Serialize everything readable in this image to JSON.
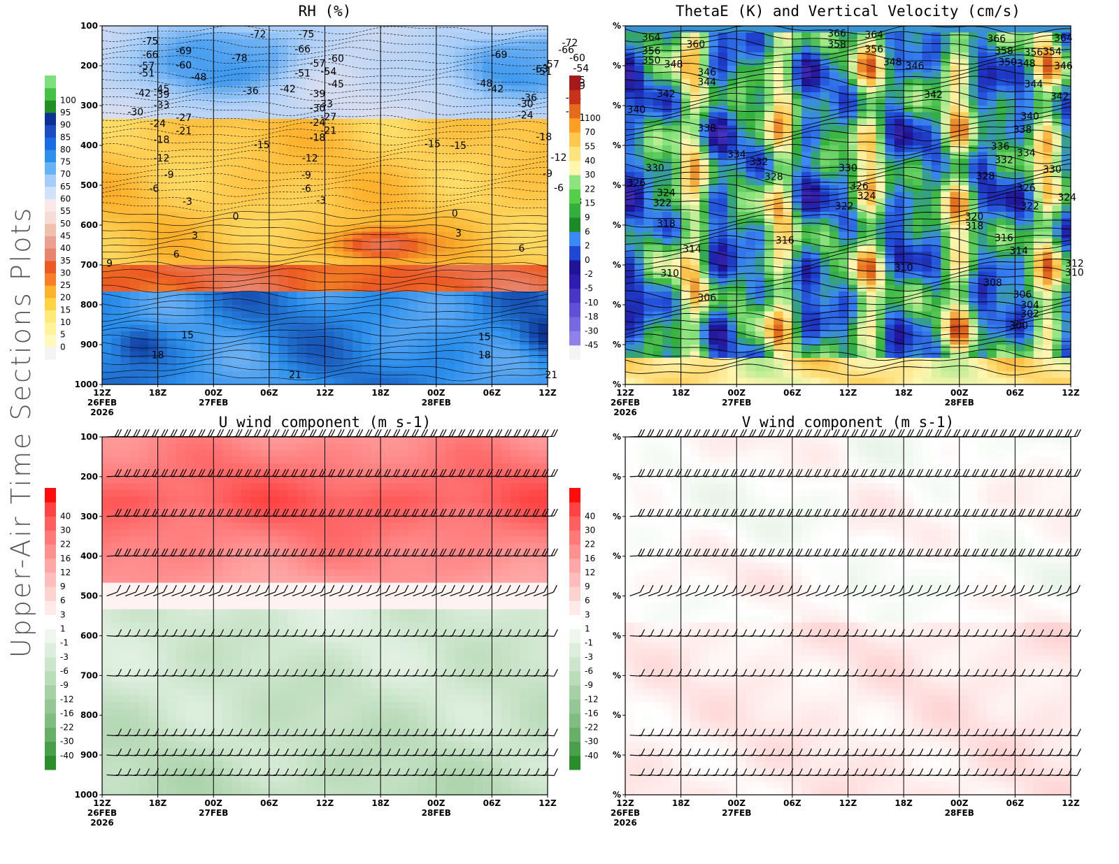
{
  "page_title": "Upper-Air Time Sections Plots",
  "time_axis": {
    "ticks": [
      "12Z",
      "18Z",
      "00Z",
      "06Z",
      "12Z",
      "18Z",
      "00Z",
      "06Z",
      "12Z"
    ],
    "dates": [
      {
        "index": 0,
        "text": "26FEB"
      },
      {
        "index": 0,
        "text": "2026",
        "line": 2
      },
      {
        "index": 2,
        "text": "27FEB"
      },
      {
        "index": 6,
        "text": "28FEB"
      }
    ]
  },
  "pressure_levels": [
    "100",
    "200",
    "300",
    "400",
    "500",
    "600",
    "700",
    "800",
    "900",
    "1000"
  ],
  "chart_data": [
    {
      "type": "heatmap",
      "title": "RH (%)",
      "y_tick_labels": [
        "100",
        "200",
        "300",
        "400",
        "500",
        "600",
        "700",
        "800",
        "900",
        "1000"
      ],
      "ylim": [
        100,
        1000
      ],
      "y_inverted": true,
      "colorbar": {
        "levels": [
          "0",
          "5",
          "10",
          "15",
          "20",
          "25",
          "30",
          "35",
          "40",
          "45",
          "50",
          "55",
          "60",
          "65",
          "70",
          "75",
          "80",
          "85",
          "90",
          "95",
          "100"
        ],
        "colors": [
          "#f4f4f4",
          "#fff9bd",
          "#fff49a",
          "#ffe978",
          "#ffd341",
          "#fdb22d",
          "#f87e28",
          "#ec5a22",
          "#e8846c",
          "#eba190",
          "#f0c0ae",
          "#f7dcd6",
          "#fbe9e9",
          "#d0e1fb",
          "#a6cdf9",
          "#64b4f4",
          "#2c8fec",
          "#1a6be6",
          "#1d4dc2",
          "#0b3194",
          "#228f24",
          "#44c245",
          "#7de07c"
        ]
      },
      "contour_labels": [
        {
          "t": 1.3,
          "p": 138,
          "text": "-75"
        },
        {
          "t": 1.3,
          "p": 172,
          "text": "-66"
        },
        {
          "t": 1.2,
          "p": 200,
          "text": "-57"
        },
        {
          "t": 1.2,
          "p": 218,
          "text": "-51"
        },
        {
          "t": 1.6,
          "p": 258,
          "text": "-45"
        },
        {
          "t": 1.6,
          "p": 272,
          "text": "-39"
        },
        {
          "t": 1.1,
          "p": 268,
          "text": "-42"
        },
        {
          "t": 1.6,
          "p": 298,
          "text": "-33"
        },
        {
          "t": 0.9,
          "p": 316,
          "text": "-30"
        },
        {
          "t": 2.2,
          "p": 330,
          "text": "-27"
        },
        {
          "t": 1.5,
          "p": 345,
          "text": "-24"
        },
        {
          "t": 2.2,
          "p": 363,
          "text": "-21"
        },
        {
          "t": 1.6,
          "p": 385,
          "text": "-18"
        },
        {
          "t": 1.6,
          "p": 432,
          "text": "-12"
        },
        {
          "t": 1.8,
          "p": 473,
          "text": "-9"
        },
        {
          "t": 1.4,
          "p": 508,
          "text": "-6"
        },
        {
          "t": 2.3,
          "p": 540,
          "text": "-3"
        },
        {
          "t": 3.6,
          "p": 578,
          "text": "0"
        },
        {
          "t": 2.5,
          "p": 625,
          "text": "3"
        },
        {
          "t": 2.0,
          "p": 673,
          "text": "6"
        },
        {
          "t": 0.2,
          "p": 696,
          "text": "9"
        },
        {
          "t": 2.2,
          "p": 162,
          "text": "-69"
        },
        {
          "t": 2.2,
          "p": 198,
          "text": "-60"
        },
        {
          "t": 2.6,
          "p": 228,
          "text": "-48"
        },
        {
          "t": 3.7,
          "p": 180,
          "text": "-78"
        },
        {
          "t": 4.2,
          "p": 120,
          "text": "-72"
        },
        {
          "t": 4.0,
          "p": 262,
          "text": "-36"
        },
        {
          "t": 5.0,
          "p": 258,
          "text": "-42"
        },
        {
          "t": 4.3,
          "p": 398,
          "text": "-15"
        },
        {
          "t": 5.5,
          "p": 120,
          "text": "-75"
        },
        {
          "t": 5.4,
          "p": 158,
          "text": "-66"
        },
        {
          "t": 5.8,
          "p": 194,
          "text": "-57"
        },
        {
          "t": 5.4,
          "p": 218,
          "text": "-51"
        },
        {
          "t": 6.1,
          "p": 214,
          "text": "-54"
        },
        {
          "t": 6.3,
          "p": 182,
          "text": "-60"
        },
        {
          "t": 6.3,
          "p": 246,
          "text": "-45"
        },
        {
          "t": 5.8,
          "p": 270,
          "text": "-39"
        },
        {
          "t": 6.0,
          "p": 296,
          "text": "-33"
        },
        {
          "t": 5.8,
          "p": 306,
          "text": "-30"
        },
        {
          "t": 6.1,
          "p": 328,
          "text": "-27"
        },
        {
          "t": 5.8,
          "p": 342,
          "text": "-24"
        },
        {
          "t": 6.1,
          "p": 362,
          "text": "-21"
        },
        {
          "t": 5.8,
          "p": 380,
          "text": "-18"
        },
        {
          "t": 5.6,
          "p": 432,
          "text": "-12"
        },
        {
          "t": 5.5,
          "p": 474,
          "text": "-9"
        },
        {
          "t": 5.5,
          "p": 508,
          "text": "-6"
        },
        {
          "t": 5.9,
          "p": 538,
          "text": "-3"
        },
        {
          "t": 8.9,
          "p": 396,
          "text": "-15"
        },
        {
          "t": 9.6,
          "p": 400,
          "text": "-15"
        },
        {
          "t": 10.7,
          "p": 172,
          "text": "-69"
        },
        {
          "t": 11.8,
          "p": 208,
          "text": "-63"
        },
        {
          "t": 10.3,
          "p": 244,
          "text": "-48"
        },
        {
          "t": 10.6,
          "p": 258,
          "text": "-42"
        },
        {
          "t": 11.9,
          "p": 214,
          "text": "-51"
        },
        {
          "t": 12.1,
          "p": 196,
          "text": "-57"
        },
        {
          "t": 11.5,
          "p": 280,
          "text": "-36"
        },
        {
          "t": 11.4,
          "p": 296,
          "text": "-30"
        },
        {
          "t": 11.4,
          "p": 324,
          "text": "-24"
        },
        {
          "t": 12.6,
          "p": 142,
          "text": "-72"
        },
        {
          "t": 12.5,
          "p": 160,
          "text": "-66"
        },
        {
          "t": 12.8,
          "p": 180,
          "text": "-60"
        },
        {
          "t": 12.9,
          "p": 206,
          "text": "-54"
        },
        {
          "t": 12.8,
          "p": 236,
          "text": "-45"
        },
        {
          "t": 12.8,
          "p": 250,
          "text": "-39"
        },
        {
          "t": 12.7,
          "p": 280,
          "text": "-33"
        },
        {
          "t": 12.7,
          "p": 314,
          "text": "-27"
        },
        {
          "t": 12.8,
          "p": 330,
          "text": "-21"
        },
        {
          "t": 11.9,
          "p": 378,
          "text": "-18"
        },
        {
          "t": 12.3,
          "p": 430,
          "text": "-12"
        },
        {
          "t": 12.0,
          "p": 470,
          "text": "-9"
        },
        {
          "t": 12.3,
          "p": 506,
          "text": "-6"
        },
        {
          "t": 12.8,
          "p": 540,
          "text": "-3"
        },
        {
          "t": 9.5,
          "p": 570,
          "text": "0"
        },
        {
          "t": 9.6,
          "p": 620,
          "text": "3"
        },
        {
          "t": 11.3,
          "p": 658,
          "text": "6"
        },
        {
          "t": 2.3,
          "p": 875,
          "text": "15"
        },
        {
          "t": 1.5,
          "p": 925,
          "text": "18"
        },
        {
          "t": 5.2,
          "p": 975,
          "text": "21"
        },
        {
          "t": 10.3,
          "p": 880,
          "text": "15"
        },
        {
          "t": 10.3,
          "p": 925,
          "text": "18"
        },
        {
          "t": 12.1,
          "p": 975,
          "text": "21"
        }
      ]
    },
    {
      "type": "heatmap",
      "title": "ThetaE (K) and Vertical Velocity (cm/s)",
      "y_tick_labels": [
        "%",
        "%",
        "%",
        "%",
        "%",
        "%",
        "%",
        "%",
        "%",
        "%"
      ],
      "ylim": [
        100,
        1000
      ],
      "y_inverted": true,
      "colorbar": {
        "levels": [
          "-45",
          "-30",
          "-18",
          "-10",
          "-5",
          "-2",
          "0",
          "2",
          "6",
          "9",
          "15",
          "22",
          "30",
          "40",
          "55",
          "70",
          "100"
        ],
        "colors": [
          "#f4f4f4",
          "#8e82e8",
          "#7769df",
          "#5f50d6",
          "#4a36c5",
          "#2e1db0",
          "#201396",
          "#1f48d4",
          "#3b89f3",
          "#1b8a27",
          "#33b03c",
          "#55cf4a",
          "#8ce57f",
          "#fff6b0",
          "#ffe37b",
          "#ffc94e",
          "#ffa024",
          "#e46b1c",
          "#c8321b",
          "#a4191a"
        ]
      },
      "contour_labels": [
        {
          "t": 0.7,
          "p": 128,
          "text": "364"
        },
        {
          "t": 0.7,
          "p": 162,
          "text": "356"
        },
        {
          "t": 0.7,
          "p": 186,
          "text": "350"
        },
        {
          "t": 1.9,
          "p": 146,
          "text": "360"
        },
        {
          "t": 1.3,
          "p": 196,
          "text": "348"
        },
        {
          "t": 2.2,
          "p": 216,
          "text": "346"
        },
        {
          "t": 2.2,
          "p": 240,
          "text": "344"
        },
        {
          "t": 1.1,
          "p": 270,
          "text": "342"
        },
        {
          "t": 0.3,
          "p": 310,
          "text": "340"
        },
        {
          "t": 5.7,
          "p": 118,
          "text": "366"
        },
        {
          "t": 5.7,
          "p": 146,
          "text": "358"
        },
        {
          "t": 6.7,
          "p": 122,
          "text": "364"
        },
        {
          "t": 6.7,
          "p": 158,
          "text": "356"
        },
        {
          "t": 7.2,
          "p": 190,
          "text": "348"
        },
        {
          "t": 7.8,
          "p": 200,
          "text": "346"
        },
        {
          "t": 10.0,
          "p": 132,
          "text": "366"
        },
        {
          "t": 10.2,
          "p": 162,
          "text": "358"
        },
        {
          "t": 11.0,
          "p": 166,
          "text": "356"
        },
        {
          "t": 11.5,
          "p": 164,
          "text": "354"
        },
        {
          "t": 10.3,
          "p": 190,
          "text": "350"
        },
        {
          "t": 10.8,
          "p": 194,
          "text": "348"
        },
        {
          "t": 11.8,
          "p": 200,
          "text": "346"
        },
        {
          "t": 11.8,
          "p": 130,
          "text": "364"
        },
        {
          "t": 11.0,
          "p": 246,
          "text": "344"
        },
        {
          "t": 11.7,
          "p": 276,
          "text": "342"
        },
        {
          "t": 8.3,
          "p": 272,
          "text": "342"
        },
        {
          "t": 10.9,
          "p": 326,
          "text": "340"
        },
        {
          "t": 10.7,
          "p": 360,
          "text": "338"
        },
        {
          "t": 2.2,
          "p": 356,
          "text": "338"
        },
        {
          "t": 10.1,
          "p": 402,
          "text": "336"
        },
        {
          "t": 10.8,
          "p": 418,
          "text": "334"
        },
        {
          "t": 10.2,
          "p": 436,
          "text": "332"
        },
        {
          "t": 3.0,
          "p": 422,
          "text": "334"
        },
        {
          "t": 3.6,
          "p": 440,
          "text": "332"
        },
        {
          "t": 0.8,
          "p": 456,
          "text": "330"
        },
        {
          "t": 6.0,
          "p": 456,
          "text": "330"
        },
        {
          "t": 11.5,
          "p": 460,
          "text": "330"
        },
        {
          "t": 9.7,
          "p": 476,
          "text": "328"
        },
        {
          "t": 4.0,
          "p": 478,
          "text": "328"
        },
        {
          "t": 0.3,
          "p": 494,
          "text": "326"
        },
        {
          "t": 6.3,
          "p": 502,
          "text": "326"
        },
        {
          "t": 10.8,
          "p": 506,
          "text": "326"
        },
        {
          "t": 1.1,
          "p": 518,
          "text": "324"
        },
        {
          "t": 6.5,
          "p": 526,
          "text": "324"
        },
        {
          "t": 11.9,
          "p": 530,
          "text": "324"
        },
        {
          "t": 1.0,
          "p": 544,
          "text": "322"
        },
        {
          "t": 5.9,
          "p": 552,
          "text": "322"
        },
        {
          "t": 10.9,
          "p": 552,
          "text": "322"
        },
        {
          "t": 9.4,
          "p": 578,
          "text": "320"
        },
        {
          "t": 1.1,
          "p": 596,
          "text": "318"
        },
        {
          "t": 9.4,
          "p": 602,
          "text": "318"
        },
        {
          "t": 4.3,
          "p": 638,
          "text": "316"
        },
        {
          "t": 10.2,
          "p": 632,
          "text": "316"
        },
        {
          "t": 1.8,
          "p": 660,
          "text": "314"
        },
        {
          "t": 10.6,
          "p": 664,
          "text": "314"
        },
        {
          "t": 12.1,
          "p": 696,
          "text": "312"
        },
        {
          "t": 7.5,
          "p": 706,
          "text": "310"
        },
        {
          "t": 12.1,
          "p": 718,
          "text": "310"
        },
        {
          "t": 1.2,
          "p": 720,
          "text": "310"
        },
        {
          "t": 9.9,
          "p": 744,
          "text": "308"
        },
        {
          "t": 10.7,
          "p": 774,
          "text": "306"
        },
        {
          "t": 2.2,
          "p": 782,
          "text": "306"
        },
        {
          "t": 10.9,
          "p": 800,
          "text": "304"
        },
        {
          "t": 10.9,
          "p": 822,
          "text": "302"
        },
        {
          "t": 10.6,
          "p": 852,
          "text": "300"
        }
      ]
    },
    {
      "type": "heatmap",
      "title": "U wind component (m s-1)",
      "y_tick_labels": [
        "100",
        "200",
        "300",
        "400",
        "500",
        "600",
        "700",
        "800",
        "900",
        "1000"
      ],
      "ylim": [
        100,
        1000
      ],
      "y_inverted": true,
      "colorbar": {
        "levels": [
          "-40",
          "-30",
          "-22",
          "-16",
          "-12",
          "-9",
          "-6",
          "-3",
          "-1",
          "1",
          "3",
          "6",
          "9",
          "12",
          "16",
          "22",
          "30",
          "40"
        ],
        "colors": [
          "#2a8f2a",
          "#4aa04a",
          "#68b068",
          "#80bd80",
          "#95c795",
          "#a6d1a6",
          "#b9dcb9",
          "#cce5cc",
          "#ddeedd",
          "#eef6ee",
          "#ffffff",
          "#ffe9e9",
          "#ffd2d2",
          "#ffbcbc",
          "#ffa6a6",
          "#ff9090",
          "#ff7979",
          "#ff5f5f",
          "#ff4242",
          "#ff0d0d"
        ]
      },
      "wind_barb_levels": [
        100,
        200,
        300,
        400,
        500,
        600,
        700,
        850,
        900,
        950
      ]
    },
    {
      "type": "heatmap",
      "title": "V wind component (m s-1)",
      "y_tick_labels": [
        "%",
        "%",
        "%",
        "%",
        "%",
        "%",
        "%",
        "%",
        "%",
        "%"
      ],
      "ylim": [
        100,
        1000
      ],
      "y_inverted": true,
      "colorbar": {
        "levels": [
          "-40",
          "-30",
          "-22",
          "-16",
          "-12",
          "-9",
          "-6",
          "-3",
          "-1",
          "1",
          "3",
          "6",
          "9",
          "12",
          "16",
          "22",
          "30",
          "40"
        ],
        "colors": [
          "#2a8f2a",
          "#4aa04a",
          "#68b068",
          "#80bd80",
          "#95c795",
          "#a6d1a6",
          "#b9dcb9",
          "#cce5cc",
          "#ddeedd",
          "#eef6ee",
          "#ffffff",
          "#ffe9e9",
          "#ffd2d2",
          "#ffbcbc",
          "#ffa6a6",
          "#ff9090",
          "#ff7979",
          "#ff5f5f",
          "#ff4242",
          "#ff0d0d"
        ]
      },
      "wind_barb_levels": [
        100,
        200,
        300,
        400,
        500,
        600,
        700,
        850,
        900,
        950
      ]
    }
  ]
}
